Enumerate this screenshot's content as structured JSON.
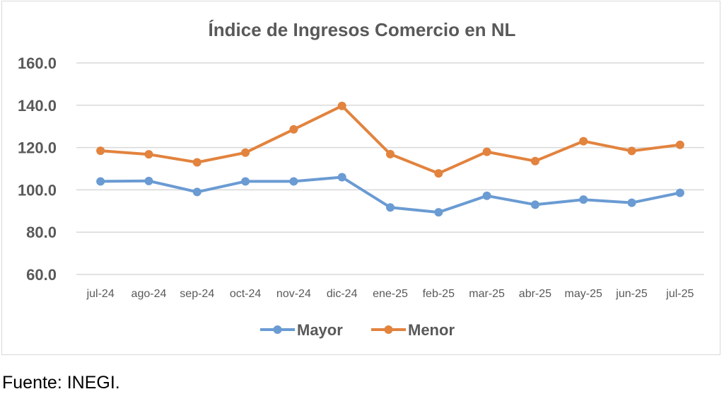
{
  "chart_data": {
    "type": "line",
    "title": "Índice de Ingresos Comercio en NL",
    "xlabel": "",
    "ylabel": "",
    "categories": [
      "jul-24",
      "ago-24",
      "sep-24",
      "oct-24",
      "nov-24",
      "dic-24",
      "ene-25",
      "feb-25",
      "mar-25",
      "abr-25",
      "may-25",
      "jun-25",
      "jul-25"
    ],
    "series": [
      {
        "name": "Mayor",
        "color": "#6a9bd3",
        "values": [
          104.0,
          104.2,
          99.0,
          104.0,
          104.0,
          106.0,
          91.7,
          89.4,
          97.2,
          93.0,
          95.4,
          93.9,
          98.6
        ]
      },
      {
        "name": "Menor",
        "color": "#e2833e",
        "values": [
          118.5,
          116.8,
          113.0,
          117.6,
          128.6,
          139.7,
          116.9,
          107.8,
          118.0,
          113.6,
          123.0,
          118.4,
          121.3
        ]
      }
    ],
    "ylim": [
      60,
      160
    ],
    "yticks": [
      "60.0",
      "80.0",
      "100.0",
      "120.0",
      "140.0",
      "160.0"
    ],
    "ytick_values": [
      60,
      80,
      100,
      120,
      140,
      160
    ],
    "grid": true,
    "legend": "bottom"
  },
  "source": "Fuente: INEGI."
}
